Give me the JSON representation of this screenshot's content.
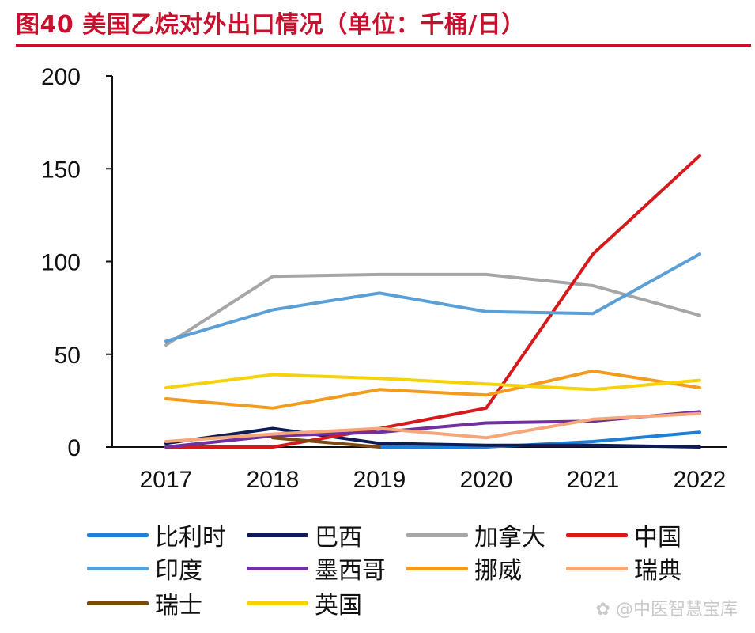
{
  "title": "图40 美国乙烷对外出口情况（单位：千桶/日）",
  "watermark": "中医智慧宝库",
  "chart_data": {
    "type": "line",
    "title": "图40 美国乙烷对外出口情况（单位：千桶/日）",
    "x": [
      "2017",
      "2018",
      "2019",
      "2020",
      "2021",
      "2022"
    ],
    "yticks": [
      "0",
      "50",
      "100",
      "150",
      "200"
    ],
    "ylim": [
      0,
      200
    ],
    "grid": false,
    "legend_position": "bottom",
    "series": [
      {
        "name": "比利时",
        "color": "#1f7fd6",
        "points": [
          [
            "2019",
            0
          ],
          [
            "2020",
            0
          ],
          [
            "2021",
            3
          ],
          [
            "2022",
            8
          ]
        ]
      },
      {
        "name": "巴西",
        "color": "#0d1b57",
        "points": [
          [
            "2017",
            2
          ],
          [
            "2018",
            10
          ],
          [
            "2019",
            2
          ],
          [
            "2020",
            1
          ],
          [
            "2021",
            1
          ],
          [
            "2022",
            0
          ]
        ]
      },
      {
        "name": "加拿大",
        "color": "#a6a6a6",
        "points": [
          [
            "2017",
            55
          ],
          [
            "2018",
            92
          ],
          [
            "2019",
            93
          ],
          [
            "2020",
            93
          ],
          [
            "2021",
            87
          ],
          [
            "2022",
            71
          ]
        ]
      },
      {
        "name": "中国",
        "color": "#d7191c",
        "points": [
          [
            "2017",
            0
          ],
          [
            "2018",
            0
          ],
          [
            "2019",
            10
          ],
          [
            "2020",
            21
          ],
          [
            "2021",
            104
          ],
          [
            "2022",
            157
          ]
        ]
      },
      {
        "name": "印度",
        "color": "#5a9fd6",
        "points": [
          [
            "2017",
            57
          ],
          [
            "2018",
            74
          ],
          [
            "2019",
            83
          ],
          [
            "2020",
            73
          ],
          [
            "2021",
            72
          ],
          [
            "2022",
            104
          ]
        ]
      },
      {
        "name": "墨西哥",
        "color": "#7030a0",
        "points": [
          [
            "2017",
            0
          ],
          [
            "2018",
            6
          ],
          [
            "2019",
            8
          ],
          [
            "2020",
            13
          ],
          [
            "2021",
            14
          ],
          [
            "2022",
            19
          ]
        ]
      },
      {
        "name": "挪威",
        "color": "#f29b1d",
        "points": [
          [
            "2017",
            26
          ],
          [
            "2018",
            21
          ],
          [
            "2019",
            31
          ],
          [
            "2020",
            28
          ],
          [
            "2021",
            41
          ],
          [
            "2022",
            32
          ]
        ]
      },
      {
        "name": "瑞典",
        "color": "#f6a77a",
        "points": [
          [
            "2017",
            3
          ],
          [
            "2018",
            7
          ],
          [
            "2019",
            10
          ],
          [
            "2020",
            5
          ],
          [
            "2021",
            15
          ],
          [
            "2022",
            18
          ]
        ]
      },
      {
        "name": "瑞士",
        "color": "#7a4a12",
        "points": [
          [
            "2018",
            5
          ],
          [
            "2019",
            0
          ]
        ]
      },
      {
        "name": "英国",
        "color": "#f5d20a",
        "points": [
          [
            "2017",
            32
          ],
          [
            "2018",
            39
          ],
          [
            "2019",
            37
          ],
          [
            "2020",
            34
          ],
          [
            "2021",
            31
          ],
          [
            "2022",
            36
          ]
        ]
      }
    ]
  }
}
